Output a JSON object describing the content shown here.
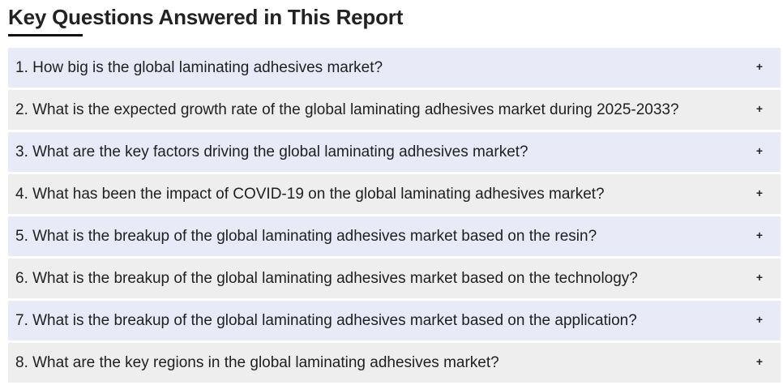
{
  "section": {
    "title": "Key Questions Answered in This Report"
  },
  "faq": {
    "toggle_symbol": "+",
    "items": [
      {
        "question": "1. How big is the global laminating adhesives market?"
      },
      {
        "question": "2. What is the expected growth rate of the global laminating adhesives market during 2025-2033?"
      },
      {
        "question": "3. What are the key factors driving the global laminating adhesives market?"
      },
      {
        "question": "4. What has been the impact of COVID-19 on the global laminating adhesives market?"
      },
      {
        "question": "5. What is the breakup of the global laminating adhesives market based on the resin?"
      },
      {
        "question": "6. What is the breakup of the global laminating adhesives market based on the technology?"
      },
      {
        "question": "7. What is the breakup of the global laminating adhesives market based on the application?"
      },
      {
        "question": "8. What are the key regions in the global laminating adhesives market?"
      }
    ]
  },
  "colors": {
    "row_odd_bg": "#e8eaf7",
    "row_even_bg": "#eeeeee",
    "title_underline": "#111111"
  }
}
